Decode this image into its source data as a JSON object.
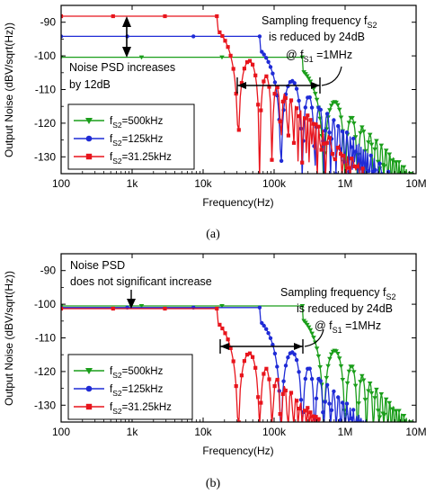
{
  "chart_data": [
    {
      "type": "line",
      "panel": "(a)",
      "caption": "(a)",
      "xlabel": "Frequency(Hz)",
      "ylabel": "Output Noise (dBV/sqrt(Hz))",
      "xscale": "log",
      "xlim": [
        100,
        10000000
      ],
      "ylim": [
        -135,
        -85
      ],
      "x_ticks": [
        100,
        1000,
        10000,
        100000,
        1000000,
        10000000
      ],
      "x_tick_labels": [
        "100",
        "1k",
        "10k",
        "100k",
        "1M",
        "10M"
      ],
      "y_ticks": [
        -130,
        -120,
        -110,
        -100,
        -90
      ],
      "y_tick_labels": [
        "-130",
        "-120",
        "-110",
        "-100",
        "-90"
      ],
      "grid": false,
      "legend_position": "bottom-left",
      "series": [
        {
          "name_main": "f",
          "name_sub": "S2",
          "name_rest": "=500kHz",
          "color": "#1a9e1a",
          "marker": "triangle-down",
          "plateau": -100.4,
          "fs": 500000
        },
        {
          "name_main": "f",
          "name_sub": "S2",
          "name_rest": "=125kHz",
          "color": "#1f2bd6",
          "marker": "circle",
          "plateau": -94.2,
          "fs": 125000
        },
        {
          "name_main": "f",
          "name_sub": "S2",
          "name_rest": "=31.25kHz",
          "color": "#e8141c",
          "marker": "square",
          "plateau": -88.2,
          "fs": 31250
        }
      ],
      "annotations": {
        "left_line1": "Noise PSD increases",
        "left_line2": "by 12dB",
        "right_line1_main": "Sampling frequency f",
        "right_line1_sub": "S2",
        "right_line2": "is reduced by 24dB",
        "right_line3_main": "@ f",
        "right_line3_sub": "S1",
        "right_line3_rest": " =1MHz"
      }
    },
    {
      "type": "line",
      "panel": "(b)",
      "caption": "(b)",
      "xlabel": "Frequency(Hz)",
      "ylabel": "Output Noise (dBV/sqrt(Hz))",
      "xscale": "log",
      "xlim": [
        100,
        10000000
      ],
      "ylim": [
        -135,
        -85
      ],
      "x_ticks": [
        100,
        1000,
        10000,
        100000,
        1000000,
        10000000
      ],
      "x_tick_labels": [
        "100",
        "1k",
        "10k",
        "100k",
        "1M",
        "10M"
      ],
      "y_ticks": [
        -130,
        -120,
        -110,
        -100,
        -90
      ],
      "y_tick_labels": [
        "-130",
        "-120",
        "-110",
        "-100",
        "-90"
      ],
      "grid": false,
      "legend_position": "bottom-left",
      "series": [
        {
          "name_main": "f",
          "name_sub": "S2",
          "name_rest": "=500kHz",
          "color": "#1a9e1a",
          "marker": "triangle-down",
          "plateau": -100.5,
          "fs": 500000
        },
        {
          "name_main": "f",
          "name_sub": "S2",
          "name_rest": "=125kHz",
          "color": "#1f2bd6",
          "marker": "circle",
          "plateau": -101.0,
          "fs": 125000
        },
        {
          "name_main": "f",
          "name_sub": "S2",
          "name_rest": "=31.25kHz",
          "color": "#e8141c",
          "marker": "square",
          "plateau": -101.3,
          "fs": 31250
        }
      ],
      "annotations": {
        "left_line1": "Noise PSD",
        "left_line2": "does not significant increase",
        "right_line1_main": "Sampling frequency f",
        "right_line1_sub": "S2",
        "right_line2": "is reduced by 24dB",
        "right_line3_main": "@ f",
        "right_line3_sub": "S1",
        "right_line3_rest": " =1MHz"
      }
    }
  ]
}
